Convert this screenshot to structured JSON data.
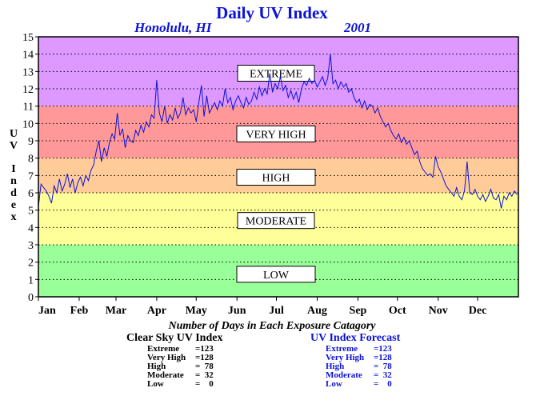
{
  "chart_data": {
    "type": "line",
    "title": "Daily UV Index",
    "location": "Honolulu, HI",
    "year": "2001",
    "ylabel": "UV Index",
    "xlabel": "",
    "ylim": [
      0,
      15
    ],
    "yticks": [
      0,
      1,
      2,
      3,
      4,
      5,
      6,
      7,
      8,
      9,
      10,
      11,
      12,
      13,
      14,
      15
    ],
    "xlim": [
      0,
      365
    ],
    "month_labels": [
      "Jan",
      "Feb",
      "Mar",
      "Apr",
      "May",
      "Jun",
      "Jul",
      "Aug",
      "Sep",
      "Oct",
      "Nov",
      "Dec"
    ],
    "grid": "horizontal dotted",
    "categories": [
      {
        "name": "LOW",
        "range": [
          0,
          3
        ],
        "color": "#99ff99",
        "label_y": 1.3
      },
      {
        "name": "MODERATE",
        "range": [
          3,
          6
        ],
        "color": "#ffff99",
        "label_y": 4.4
      },
      {
        "name": "HIGH",
        "range": [
          6,
          8
        ],
        "color": "#ffcc99",
        "label_y": 6.9
      },
      {
        "name": "VERY HIGH",
        "range": [
          8,
          11
        ],
        "color": "#ff9999",
        "label_y": 9.4
      },
      {
        "name": "EXTREME",
        "range": [
          11,
          15
        ],
        "color": "#dd99ff",
        "label_y": 12.9
      }
    ],
    "series": [
      {
        "name": "UV Index Forecast",
        "color": "#0b12d6",
        "points": [
          [
            0,
            5.2
          ],
          [
            2,
            6.5
          ],
          [
            4,
            6.3
          ],
          [
            6,
            6.1
          ],
          [
            8,
            5.8
          ],
          [
            10,
            5.4
          ],
          [
            12,
            6.4
          ],
          [
            14,
            6.0
          ],
          [
            16,
            6.8
          ],
          [
            18,
            6.1
          ],
          [
            20,
            6.5
          ],
          [
            22,
            7.1
          ],
          [
            24,
            6.3
          ],
          [
            26,
            6.8
          ],
          [
            28,
            6.0
          ],
          [
            30,
            6.6
          ],
          [
            32,
            6.9
          ],
          [
            34,
            6.4
          ],
          [
            36,
            7.0
          ],
          [
            38,
            6.7
          ],
          [
            40,
            7.3
          ],
          [
            42,
            7.6
          ],
          [
            44,
            8.4
          ],
          [
            46,
            9.0
          ],
          [
            48,
            7.8
          ],
          [
            50,
            8.6
          ],
          [
            52,
            8.1
          ],
          [
            54,
            8.9
          ],
          [
            56,
            9.4
          ],
          [
            58,
            9.1
          ],
          [
            60,
            10.6
          ],
          [
            62,
            9.3
          ],
          [
            64,
            9.7
          ],
          [
            66,
            8.6
          ],
          [
            68,
            9.3
          ],
          [
            70,
            9.0
          ],
          [
            72,
            8.9
          ],
          [
            74,
            9.6
          ],
          [
            76,
            9.3
          ],
          [
            78,
            9.9
          ],
          [
            80,
            9.5
          ],
          [
            82,
            10.1
          ],
          [
            84,
            9.8
          ],
          [
            86,
            10.5
          ],
          [
            88,
            10.3
          ],
          [
            90,
            12.5
          ],
          [
            92,
            10.6
          ],
          [
            94,
            10.1
          ],
          [
            96,
            11.0
          ],
          [
            98,
            10.0
          ],
          [
            100,
            10.5
          ],
          [
            102,
            10.2
          ],
          [
            104,
            10.9
          ],
          [
            106,
            10.3
          ],
          [
            108,
            10.6
          ],
          [
            110,
            11.5
          ],
          [
            112,
            10.5
          ],
          [
            114,
            10.9
          ],
          [
            116,
            10.6
          ],
          [
            118,
            10.8
          ],
          [
            120,
            10.1
          ],
          [
            122,
            11.2
          ],
          [
            124,
            12.2
          ],
          [
            126,
            10.4
          ],
          [
            128,
            11.6
          ],
          [
            130,
            10.6
          ],
          [
            132,
            10.9
          ],
          [
            134,
            11.2
          ],
          [
            136,
            10.8
          ],
          [
            138,
            11.3
          ],
          [
            140,
            11.0
          ],
          [
            142,
            12.0
          ],
          [
            144,
            11.2
          ],
          [
            146,
            11.5
          ],
          [
            148,
            10.8
          ],
          [
            150,
            11.3
          ],
          [
            152,
            11.6
          ],
          [
            154,
            11.2
          ],
          [
            156,
            10.9
          ],
          [
            158,
            11.5
          ],
          [
            160,
            11.1
          ],
          [
            162,
            11.3
          ],
          [
            164,
            11.8
          ],
          [
            166,
            11.4
          ],
          [
            168,
            12.1
          ],
          [
            170,
            11.6
          ],
          [
            172,
            12.0
          ],
          [
            174,
            11.7
          ],
          [
            176,
            12.9
          ],
          [
            178,
            11.8
          ],
          [
            180,
            12.3
          ],
          [
            182,
            12.0
          ],
          [
            184,
            12.7
          ],
          [
            186,
            11.9
          ],
          [
            188,
            12.2
          ],
          [
            190,
            11.5
          ],
          [
            192,
            11.9
          ],
          [
            194,
            11.4
          ],
          [
            196,
            11.8
          ],
          [
            198,
            11.2
          ],
          [
            200,
            12.0
          ],
          [
            202,
            12.4
          ],
          [
            204,
            12.2
          ],
          [
            206,
            12.6
          ],
          [
            208,
            12.3
          ],
          [
            210,
            12.5
          ],
          [
            212,
            12.1
          ],
          [
            214,
            12.4
          ],
          [
            216,
            12.7
          ],
          [
            218,
            12.2
          ],
          [
            220,
            12.6
          ],
          [
            222,
            14.0
          ],
          [
            224,
            12.3
          ],
          [
            226,
            12.5
          ],
          [
            228,
            12.0
          ],
          [
            230,
            12.4
          ],
          [
            232,
            12.1
          ],
          [
            234,
            12.3
          ],
          [
            236,
            11.8
          ],
          [
            238,
            12.0
          ],
          [
            240,
            11.5
          ],
          [
            242,
            11.2
          ],
          [
            244,
            11.4
          ],
          [
            246,
            10.9
          ],
          [
            248,
            11.3
          ],
          [
            250,
            10.8
          ],
          [
            252,
            11.1
          ],
          [
            254,
            11.0
          ],
          [
            256,
            10.6
          ],
          [
            258,
            10.9
          ],
          [
            260,
            10.4
          ],
          [
            262,
            10.1
          ],
          [
            264,
            9.8
          ],
          [
            266,
            10.0
          ],
          [
            268,
            9.6
          ],
          [
            270,
            9.3
          ],
          [
            272,
            9.1
          ],
          [
            274,
            9.4
          ],
          [
            276,
            8.9
          ],
          [
            278,
            9.2
          ],
          [
            280,
            8.8
          ],
          [
            282,
            9.0
          ],
          [
            284,
            8.6
          ],
          [
            286,
            8.2
          ],
          [
            288,
            8.4
          ],
          [
            290,
            7.8
          ],
          [
            292,
            7.4
          ],
          [
            294,
            7.2
          ],
          [
            296,
            7.0
          ],
          [
            298,
            7.1
          ],
          [
            300,
            6.9
          ],
          [
            302,
            8.1
          ],
          [
            304,
            7.5
          ],
          [
            306,
            7.2
          ],
          [
            308,
            6.8
          ],
          [
            310,
            6.4
          ],
          [
            312,
            6.2
          ],
          [
            314,
            6.0
          ],
          [
            316,
            5.8
          ],
          [
            318,
            6.3
          ],
          [
            320,
            5.8
          ],
          [
            322,
            5.6
          ],
          [
            324,
            6.1
          ],
          [
            326,
            7.8
          ],
          [
            328,
            6.0
          ],
          [
            330,
            5.9
          ],
          [
            332,
            6.2
          ],
          [
            334,
            5.8
          ],
          [
            336,
            5.6
          ],
          [
            338,
            5.9
          ],
          [
            340,
            5.5
          ],
          [
            342,
            5.8
          ],
          [
            344,
            6.2
          ],
          [
            346,
            5.7
          ],
          [
            348,
            5.6
          ],
          [
            350,
            5.9
          ],
          [
            352,
            5.1
          ],
          [
            354,
            5.8
          ],
          [
            356,
            5.6
          ],
          [
            358,
            6.0
          ],
          [
            360,
            5.8
          ],
          [
            362,
            6.1
          ],
          [
            364,
            5.9
          ]
        ]
      }
    ]
  },
  "footer": {
    "caption": "Number of Days in Each Exposure Catagory",
    "clear_sky": {
      "title": "Clear Sky UV Index",
      "rows": [
        {
          "label": "Extreme",
          "value": "=123"
        },
        {
          "label": "Very High",
          "value": "=128"
        },
        {
          "label": "High",
          "value": "=  78"
        },
        {
          "label": "Moderate",
          "value": "=  32"
        },
        {
          "label": "Low",
          "value": "=    0"
        }
      ]
    },
    "forecast": {
      "title": "UV Index Forecast",
      "rows": [
        {
          "label": "Extreme",
          "value": "=123"
        },
        {
          "label": "Very High",
          "value": "=128"
        },
        {
          "label": "High",
          "value": "=  78"
        },
        {
          "label": "Moderate",
          "value": "=  32"
        },
        {
          "label": "Low",
          "value": "=    0"
        }
      ]
    }
  }
}
